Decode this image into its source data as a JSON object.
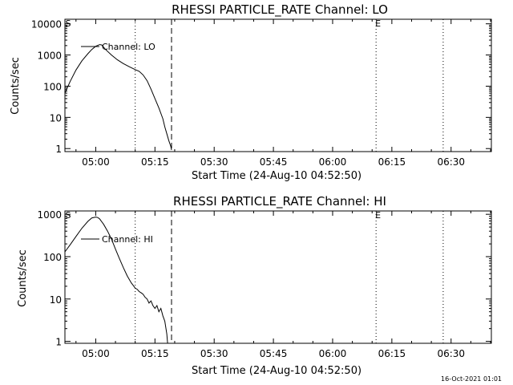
{
  "footer": {
    "timestamp": "16-Oct-2021 01:01"
  },
  "chart_data": [
    {
      "type": "line",
      "title": "RHESSI PARTICLE_RATE Channel: LO",
      "xlabel": "Start Time (24-Aug-10 04:52:50)",
      "ylabel": "Counts/sec",
      "yscale": "log",
      "xlim_min": [
        -7.8,
        100.2
      ],
      "ylim": [
        0.8,
        14000
      ],
      "x_ticks_min": [
        0,
        15,
        30,
        45,
        60,
        75,
        90
      ],
      "x_tick_labels": [
        "05:00",
        "05:15",
        "05:30",
        "05:45",
        "06:00",
        "06:15",
        "06:30"
      ],
      "y_ticks": [
        1,
        10,
        100,
        1000,
        10000
      ],
      "y_tick_labels": [
        "1",
        "10",
        "100",
        "1000",
        "10000"
      ],
      "legend": "top-left",
      "markers": [
        {
          "label": "S",
          "x_min": -7.0
        },
        {
          "label": "E",
          "x_min": 71.5
        }
      ],
      "vlines": [
        {
          "x_min": 10.0,
          "style": "dotted"
        },
        {
          "x_min": 19.2,
          "style": "dashed"
        },
        {
          "x_min": 71.0,
          "style": "dotted"
        },
        {
          "x_min": 88.0,
          "style": "dotted"
        }
      ],
      "series": [
        {
          "name": "Channel: LO",
          "x_min": [
            -7.8,
            -6.5,
            -5,
            -3.5,
            -2,
            -1,
            0,
            1,
            1.5,
            2.5,
            4,
            5.5,
            7,
            8.5,
            10,
            11,
            12,
            13,
            14,
            15,
            16,
            17,
            17.5,
            18,
            18.5,
            19,
            19.2
          ],
          "values": [
            60,
            140,
            330,
            650,
            1100,
            1500,
            1900,
            2150,
            2100,
            1500,
            1000,
            700,
            530,
            420,
            340,
            300,
            230,
            150,
            80,
            40,
            20,
            9,
            5,
            3,
            1.8,
            1.2,
            0.9
          ]
        }
      ]
    },
    {
      "type": "line",
      "title": "RHESSI PARTICLE_RATE Channel: HI",
      "xlabel": "Start Time (24-Aug-10 04:52:50)",
      "ylabel": "Counts/sec",
      "yscale": "log",
      "xlim_min": [
        -7.8,
        100.2
      ],
      "ylim": [
        0.9,
        1200
      ],
      "x_ticks_min": [
        0,
        15,
        30,
        45,
        60,
        75,
        90
      ],
      "x_tick_labels": [
        "05:00",
        "05:15",
        "05:30",
        "05:45",
        "06:00",
        "06:15",
        "06:30"
      ],
      "y_ticks": [
        1,
        10,
        100,
        1000
      ],
      "y_tick_labels": [
        "1",
        "10",
        "100",
        "1000"
      ],
      "legend": "top-left",
      "markers": [
        {
          "label": "S",
          "x_min": -7.0
        },
        {
          "label": "E",
          "x_min": 71.5
        }
      ],
      "vlines": [
        {
          "x_min": 10.0,
          "style": "dotted"
        },
        {
          "x_min": 19.2,
          "style": "dashed"
        },
        {
          "x_min": 71.0,
          "style": "dotted"
        },
        {
          "x_min": 88.0,
          "style": "dotted"
        }
      ],
      "series": [
        {
          "name": "Channel: HI",
          "x_min": [
            -7.8,
            -6.5,
            -5,
            -3.5,
            -2,
            -1,
            0,
            0.5,
            1,
            2,
            3,
            4,
            5,
            6,
            7,
            8,
            9,
            9.5,
            10,
            10.5,
            11,
            11.5,
            12,
            12.5,
            13,
            13.5,
            14,
            14.5,
            15,
            15.5,
            16,
            16.5,
            17,
            17.5,
            18,
            18.2
          ],
          "values": [
            130,
            190,
            300,
            470,
            680,
            820,
            860,
            840,
            780,
            580,
            400,
            260,
            150,
            90,
            55,
            35,
            24,
            21,
            18,
            17,
            15,
            14,
            13,
            11,
            10,
            8,
            9,
            7,
            6,
            7,
            5,
            6,
            4,
            3,
            1.5,
            0.9
          ]
        }
      ]
    }
  ]
}
